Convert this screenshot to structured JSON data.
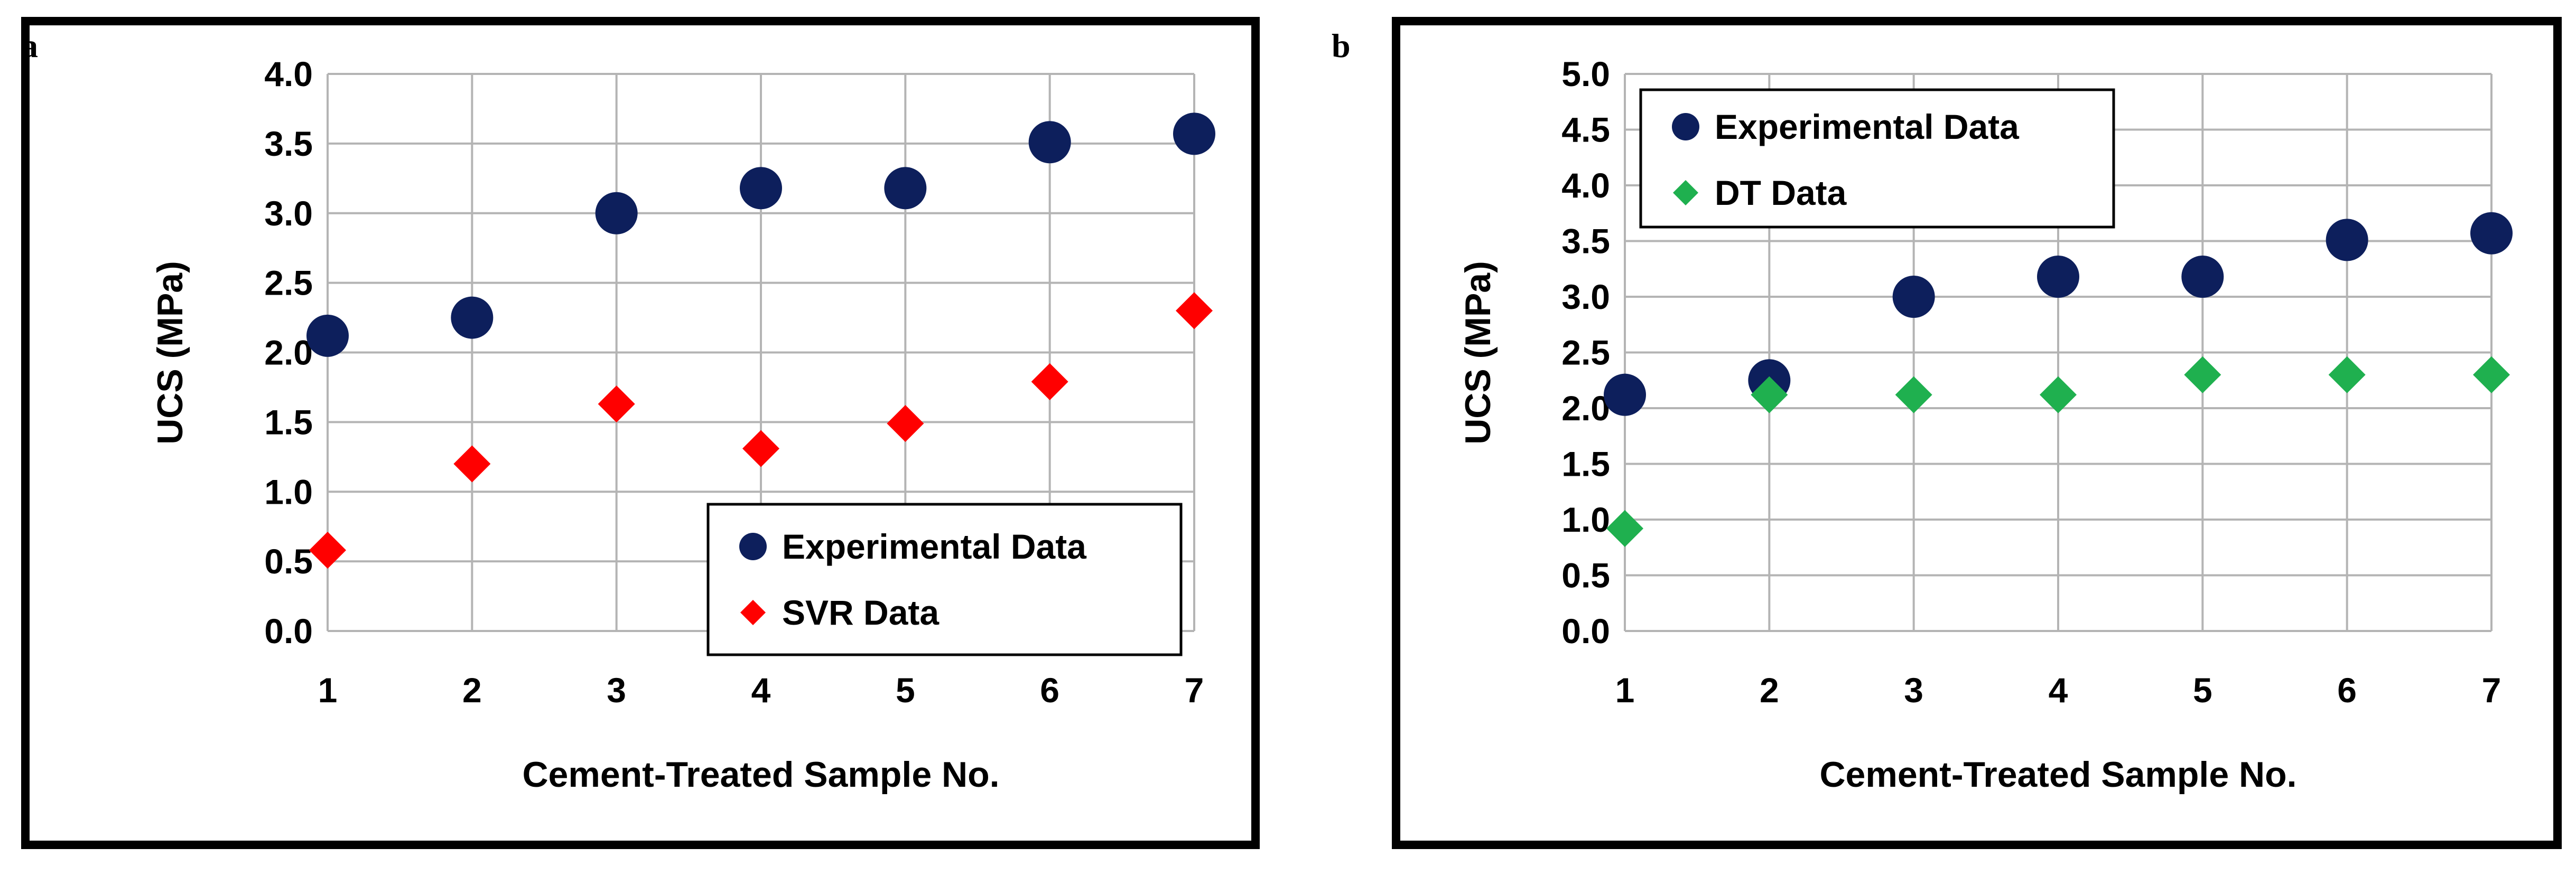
{
  "figures": [
    {
      "panel_label": "a",
      "marker_colors": [
        "#0d1f5c",
        "#ff0000"
      ],
      "marker_shapes": [
        "circle",
        "diamond"
      ]
    },
    {
      "panel_label": "b",
      "marker_colors": [
        "#0d1f5c",
        "#1fb04f"
      ],
      "marker_shapes": [
        "circle",
        "diamond"
      ]
    }
  ],
  "chart_data": [
    {
      "type": "scatter",
      "title": "",
      "xlabel": "Cement-Treated Sample No.",
      "ylabel": "UCS (MPa)",
      "xlim": [
        1,
        7
      ],
      "ylim": [
        0,
        4.0
      ],
      "x_ticks": [
        "1",
        "2",
        "3",
        "4",
        "5",
        "6",
        "7"
      ],
      "y_ticks": [
        "0.0",
        "0.5",
        "1.0",
        "1.5",
        "2.0",
        "2.5",
        "3.0",
        "3.5",
        "4.0"
      ],
      "grid": true,
      "legend_position": "bottom-right",
      "x": [
        1,
        2,
        3,
        4,
        5,
        6,
        7
      ],
      "series": [
        {
          "name": "Experimental Data",
          "values": [
            2.12,
            2.25,
            3.0,
            3.18,
            3.18,
            3.51,
            3.57
          ]
        },
        {
          "name": "SVR Data",
          "values": [
            0.58,
            1.2,
            1.63,
            1.31,
            1.49,
            1.79,
            2.3
          ]
        }
      ]
    },
    {
      "type": "scatter",
      "title": "",
      "xlabel": "Cement-Treated Sample No.",
      "ylabel": "UCS (MPa)",
      "xlim": [
        1,
        7
      ],
      "ylim": [
        0,
        5.0
      ],
      "x_ticks": [
        "1",
        "2",
        "3",
        "4",
        "5",
        "6",
        "7"
      ],
      "y_ticks": [
        "0.0",
        "0.5",
        "1.0",
        "1.5",
        "2.0",
        "2.5",
        "3.0",
        "3.5",
        "4.0",
        "4.5",
        "5.0"
      ],
      "grid": true,
      "legend_position": "top-left",
      "x": [
        1,
        2,
        3,
        4,
        5,
        6,
        7
      ],
      "series": [
        {
          "name": "Experimental Data",
          "values": [
            2.12,
            2.25,
            3.0,
            3.18,
            3.18,
            3.51,
            3.57
          ]
        },
        {
          "name": "DT Data",
          "values": [
            0.92,
            2.12,
            2.12,
            2.12,
            2.3,
            2.3,
            2.3
          ]
        }
      ]
    }
  ]
}
